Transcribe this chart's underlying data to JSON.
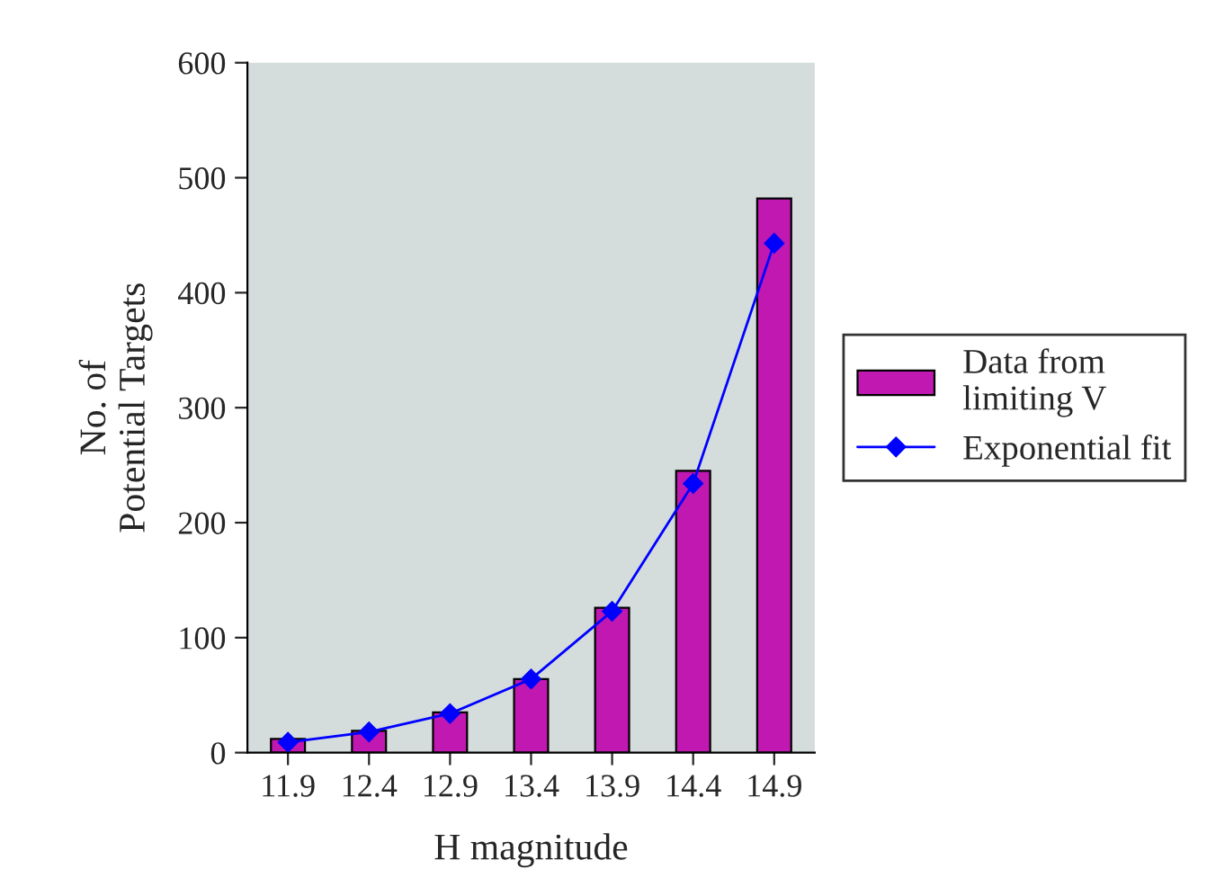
{
  "chart_data": {
    "type": "bar",
    "xlabel": "H magnitude",
    "ylabel": "No. of\nPotential Targets",
    "categories": [
      "11.9",
      "12.4",
      "12.9",
      "13.4",
      "13.9",
      "14.4",
      "14.9"
    ],
    "series": [
      {
        "name": "Data from\nlimiting V",
        "color": "#c018b0",
        "values": [
          12,
          19,
          35,
          64,
          126,
          245,
          482
        ]
      },
      {
        "name": "Exponential fit",
        "type": "line",
        "color": "#0000ff",
        "marker": "diamond",
        "values": [
          9,
          18,
          34,
          64,
          123,
          234,
          443
        ]
      }
    ],
    "ylim": [
      0,
      600
    ],
    "yticks": [
      0,
      100,
      200,
      300,
      400,
      500,
      600
    ],
    "grid": false,
    "legend": "right"
  }
}
